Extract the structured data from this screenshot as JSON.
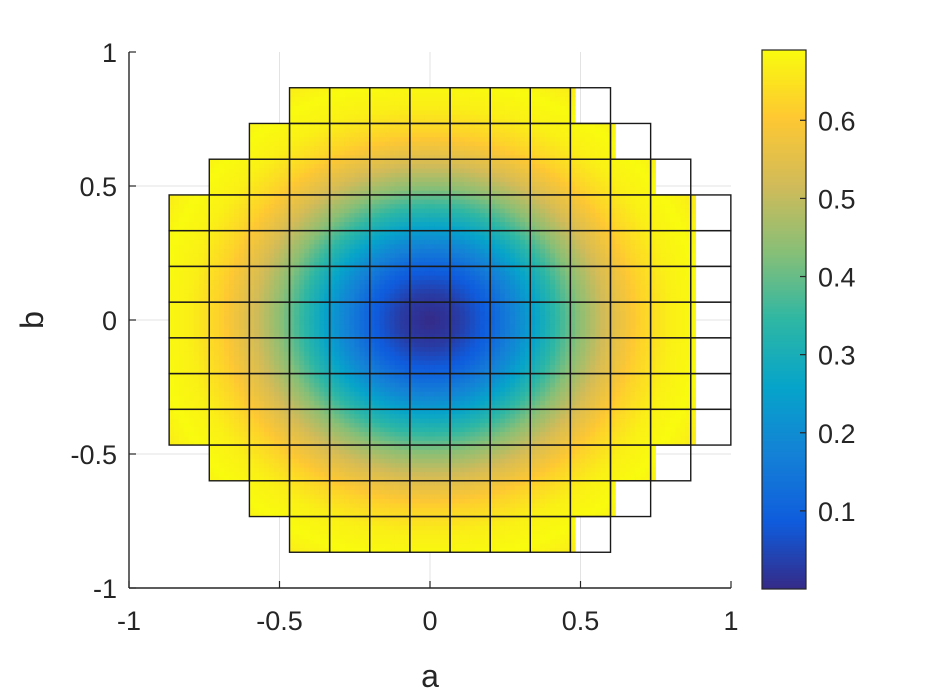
{
  "chart_data": {
    "type": "heatmap",
    "title": "",
    "xlabel": "a",
    "ylabel": "b",
    "xlim": [
      -1,
      1
    ],
    "ylim": [
      -1,
      1
    ],
    "xticks": [
      "-1",
      "-0.5",
      "0",
      "0.5",
      "1"
    ],
    "yticks": [
      "-1",
      "-0.5",
      "0",
      "0.5",
      "1"
    ],
    "grid": true,
    "colormap": "parula",
    "colorbar": {
      "range": [
        0,
        0.69
      ],
      "ticks": [
        "0.1",
        "0.2",
        "0.3",
        "0.4",
        "0.5",
        "0.6"
      ],
      "stops": [
        "#352a87",
        "#0f5cdd",
        "#1481d6",
        "#06a4ca",
        "#2eb7a4",
        "#87bf77",
        "#d1bb59",
        "#fec832",
        "#f9fb0e"
      ]
    },
    "grid_cell_size": 0.1333,
    "row_x_extents": [
      {
        "b": 0.8,
        "x_min": -0.4667,
        "x_max": 0.4667
      },
      {
        "b": 0.6667,
        "x_min": -0.6,
        "x_max": 0.6
      },
      {
        "b": 0.5333,
        "x_min": -0.7333,
        "x_max": 0.7333
      },
      {
        "b": 0.4,
        "x_min": -0.8667,
        "x_max": 0.8667
      },
      {
        "b": 0.2667,
        "x_min": -0.8667,
        "x_max": 0.8667
      },
      {
        "b": 0.1333,
        "x_min": -0.8667,
        "x_max": 0.8667
      },
      {
        "b": 0.0,
        "x_min": -0.8667,
        "x_max": 0.8667
      },
      {
        "b": -0.1333,
        "x_min": -0.8667,
        "x_max": 0.8667
      },
      {
        "b": -0.2667,
        "x_min": -0.8667,
        "x_max": 0.8667
      },
      {
        "b": -0.4,
        "x_min": -0.8667,
        "x_max": 0.8667
      },
      {
        "b": -0.5333,
        "x_min": -0.7333,
        "x_max": 0.7333
      },
      {
        "b": -0.6667,
        "x_min": -0.6,
        "x_max": 0.6
      },
      {
        "b": -0.8,
        "x_min": -0.4667,
        "x_max": 0.4667
      }
    ],
    "value_profile": {
      "description_free_radial_profile_r": [
        0.0,
        0.1,
        0.2,
        0.3,
        0.4,
        0.5,
        0.6,
        0.7,
        0.8,
        0.9,
        1.0,
        1.1,
        1.2
      ],
      "value": [
        0.0,
        0.03,
        0.1,
        0.2,
        0.32,
        0.44,
        0.54,
        0.62,
        0.67,
        0.69,
        0.66,
        0.58,
        0.46
      ]
    }
  }
}
